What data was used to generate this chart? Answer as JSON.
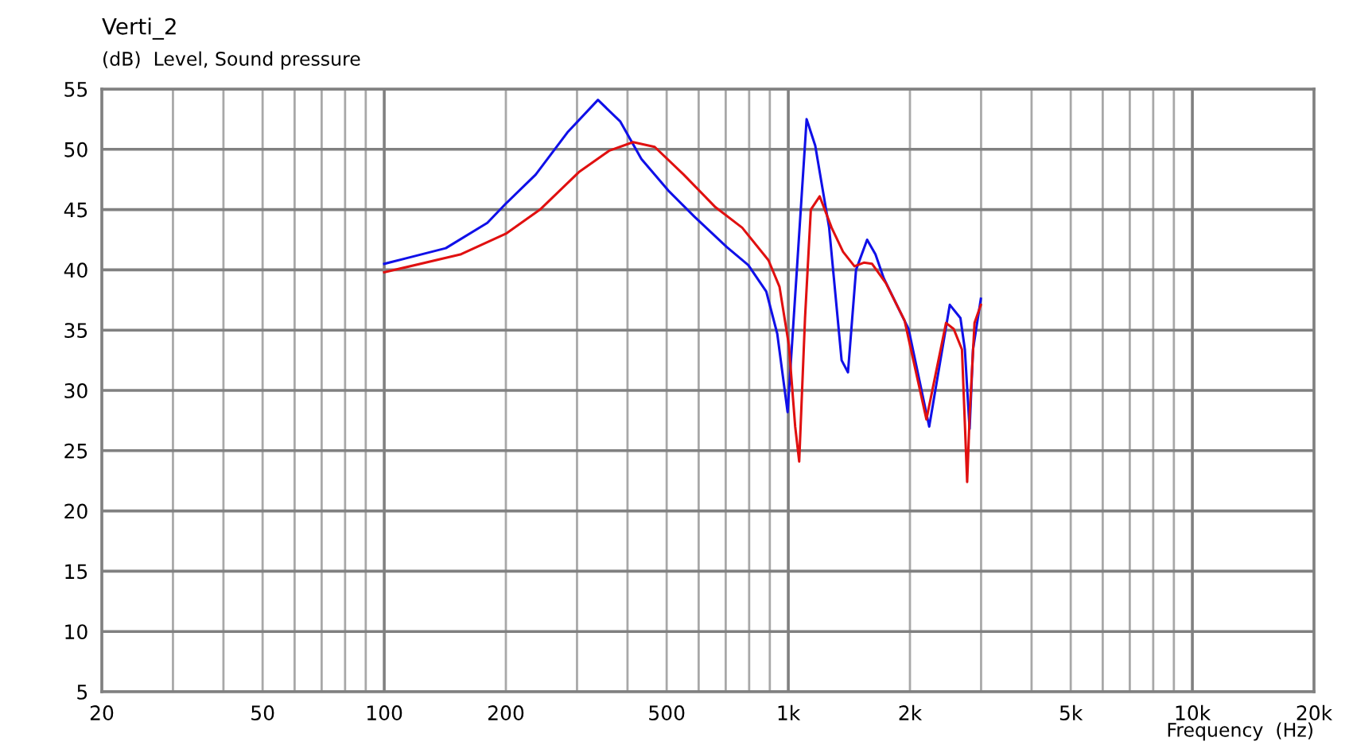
{
  "chart_data": {
    "type": "line",
    "title": "Verti_2",
    "ylabel": "(dB)  Level, Sound pressure",
    "xlabel": "Frequency  (Hz)",
    "log": "x",
    "grid": true,
    "marker": "none",
    "line_style": "solid",
    "xlim": [
      20,
      20000
    ],
    "ylim": [
      5,
      55
    ],
    "xticks": [
      20,
      {
        "value": 30,
        "label": null
      },
      {
        "value": 40,
        "label": null
      },
      50,
      {
        "value": 60,
        "label": null
      },
      {
        "value": 70,
        "label": null
      },
      {
        "value": 80,
        "label": null
      },
      {
        "value": 90,
        "label": null
      },
      100,
      200,
      {
        "value": 300,
        "label": null
      },
      {
        "value": 400,
        "label": null
      },
      500,
      {
        "value": 600,
        "label": null
      },
      {
        "value": 700,
        "label": null
      },
      {
        "value": 800,
        "label": null
      },
      {
        "value": 900,
        "label": null
      },
      {
        "value": 1000,
        "label": "1k"
      },
      {
        "value": 2000,
        "label": "2k"
      },
      {
        "value": 3000,
        "label": null
      },
      {
        "value": 4000,
        "label": null
      },
      {
        "value": 5000,
        "label": "5k"
      },
      {
        "value": 6000,
        "label": null
      },
      {
        "value": 7000,
        "label": null
      },
      {
        "value": 8000,
        "label": null
      },
      {
        "value": 9000,
        "label": null
      },
      {
        "value": 10000,
        "label": "10k"
      },
      {
        "value": 20000,
        "label": "20k"
      }
    ],
    "yticks": [
      5,
      10,
      15,
      20,
      25,
      30,
      35,
      40,
      45,
      50,
      55
    ],
    "series": [
      {
        "color": "#1010e8",
        "x": [
          100,
          142,
          180,
          200,
          237,
          284,
          338,
          384,
          433,
          504,
          586,
          704,
          796,
          882,
          939,
          996,
          1050,
          1110,
          1166,
          1262,
          1355,
          1405,
          1471,
          1567,
          1643,
          1723,
          1984,
          2232,
          2510,
          2667,
          2735,
          2810,
          2865,
          2996
        ],
        "values": [
          40.5,
          41.8,
          43.9,
          45.5,
          47.9,
          51.4,
          54.1,
          52.3,
          49.2,
          46.6,
          44.4,
          41.9,
          40.4,
          38.2,
          34.7,
          28.2,
          40,
          52.5,
          50.3,
          43.5,
          32.5,
          31.5,
          40.0,
          42.5,
          41.3,
          39.3,
          35.1,
          27.0,
          37.1,
          36.0,
          33.4,
          26.8,
          33.4,
          37.6
        ]
      },
      {
        "color": "#e01010",
        "x": [
          100,
          155,
          200,
          243,
          303,
          361,
          413,
          467,
          551,
          660,
          769,
          893,
          951,
          1003,
          1040,
          1064,
          1100,
          1137,
          1196,
          1280,
          1366,
          1458,
          1538,
          1612,
          1744,
          1940,
          2197,
          2457,
          2566,
          2690,
          2771,
          2812,
          2890,
          2996
        ],
        "values": [
          39.8,
          41.3,
          43.0,
          45.0,
          48.1,
          49.9,
          50.6,
          50.2,
          47.9,
          45.2,
          43.5,
          40.8,
          38.6,
          33.8,
          27.0,
          24.1,
          36,
          45.0,
          46.1,
          43.5,
          41.5,
          40.3,
          40.6,
          40.5,
          38.9,
          35.8,
          27.6,
          35.6,
          35.1,
          33.4,
          22.4,
          28.1,
          35.6,
          37.1
        ]
      }
    ]
  }
}
